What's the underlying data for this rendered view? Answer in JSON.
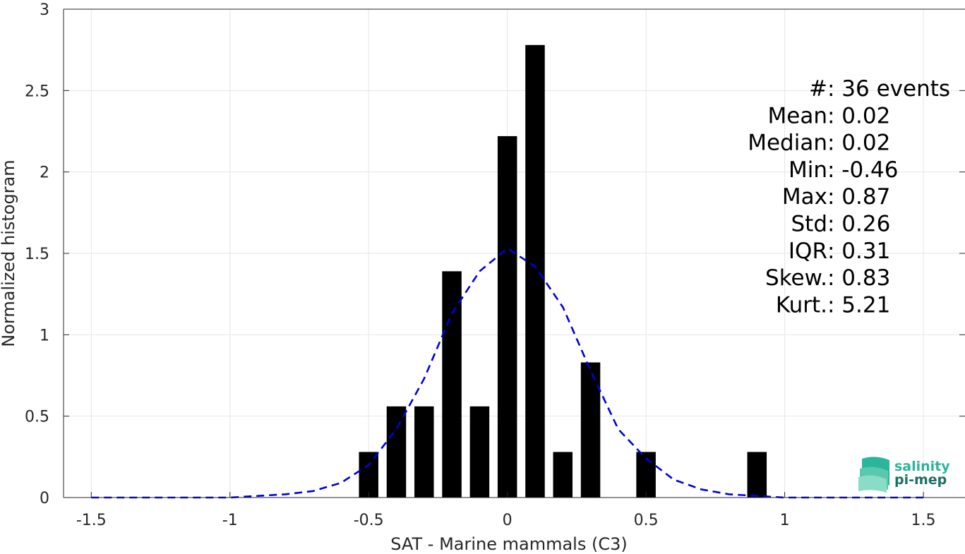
{
  "chart_data": {
    "type": "bar",
    "xlabel": "SAT - Marine mammals (C3)",
    "ylabel": "Normalized histogram",
    "xlim": [
      -1.6,
      1.65
    ],
    "ylim": [
      0,
      3
    ],
    "xticks": [
      -1.5,
      -1,
      -0.5,
      0,
      0.5,
      1,
      1.5
    ],
    "xtick_labels": [
      "-1.5",
      "-1",
      "-0.5",
      "0",
      "0.5",
      "1",
      "1.5"
    ],
    "yticks": [
      0,
      0.5,
      1,
      1.5,
      2,
      2.5,
      3
    ],
    "ytick_labels": [
      "0",
      "0.5",
      "1",
      "1.5",
      "2",
      "2.5",
      "3"
    ],
    "grid": true,
    "bar_color": "#000000",
    "bar_width": 0.07,
    "bars": [
      {
        "x": -0.5,
        "y": 0.28
      },
      {
        "x": -0.4,
        "y": 0.56
      },
      {
        "x": -0.3,
        "y": 0.56
      },
      {
        "x": -0.2,
        "y": 1.39
      },
      {
        "x": -0.1,
        "y": 0.56
      },
      {
        "x": 0.0,
        "y": 2.22
      },
      {
        "x": 0.1,
        "y": 2.78
      },
      {
        "x": 0.2,
        "y": 0.28
      },
      {
        "x": 0.3,
        "y": 0.83
      },
      {
        "x": 0.5,
        "y": 0.28
      },
      {
        "x": 0.9,
        "y": 0.28
      }
    ],
    "fit_curve": {
      "style": "dashed",
      "color": "#0000dd",
      "x": [
        -1.5,
        -1.4,
        -1.3,
        -1.2,
        -1.1,
        -1.0,
        -0.9,
        -0.8,
        -0.7,
        -0.6,
        -0.5,
        -0.4,
        -0.3,
        -0.2,
        -0.1,
        0.0,
        0.1,
        0.2,
        0.3,
        0.4,
        0.5,
        0.6,
        0.7,
        0.8,
        0.9,
        1.0,
        1.1,
        1.2,
        1.3,
        1.4,
        1.5
      ],
      "y": [
        0.0,
        0.0,
        0.0,
        0.0,
        0.0,
        0.0,
        0.01,
        0.02,
        0.04,
        0.09,
        0.2,
        0.42,
        0.73,
        1.13,
        1.39,
        1.53,
        1.42,
        1.17,
        0.78,
        0.42,
        0.24,
        0.11,
        0.05,
        0.02,
        0.01,
        0.0,
        0.0,
        0.0,
        0.0,
        0.0,
        0.0
      ]
    },
    "stats": [
      {
        "label": "#  ",
        "value": ": 36 events"
      },
      {
        "label": "Mean ",
        "value": ": 0.02"
      },
      {
        "label": "Median ",
        "value": ": 0.02"
      },
      {
        "label": "Min ",
        "value": ": -0.46"
      },
      {
        "label": "Max ",
        "value": ": 0.87"
      },
      {
        "label": "Std ",
        "value": ": 0.26"
      },
      {
        "label": "IQR ",
        "value": ": 0.31"
      },
      {
        "label": "Skew. ",
        "value": ": 0.83"
      },
      {
        "label": "Kurt. ",
        "value": ": 5.21"
      }
    ]
  },
  "logo": {
    "line1": "salinity",
    "line2": "pi-mep",
    "color1": "#2bb59a",
    "color2": "#1f6f63"
  }
}
